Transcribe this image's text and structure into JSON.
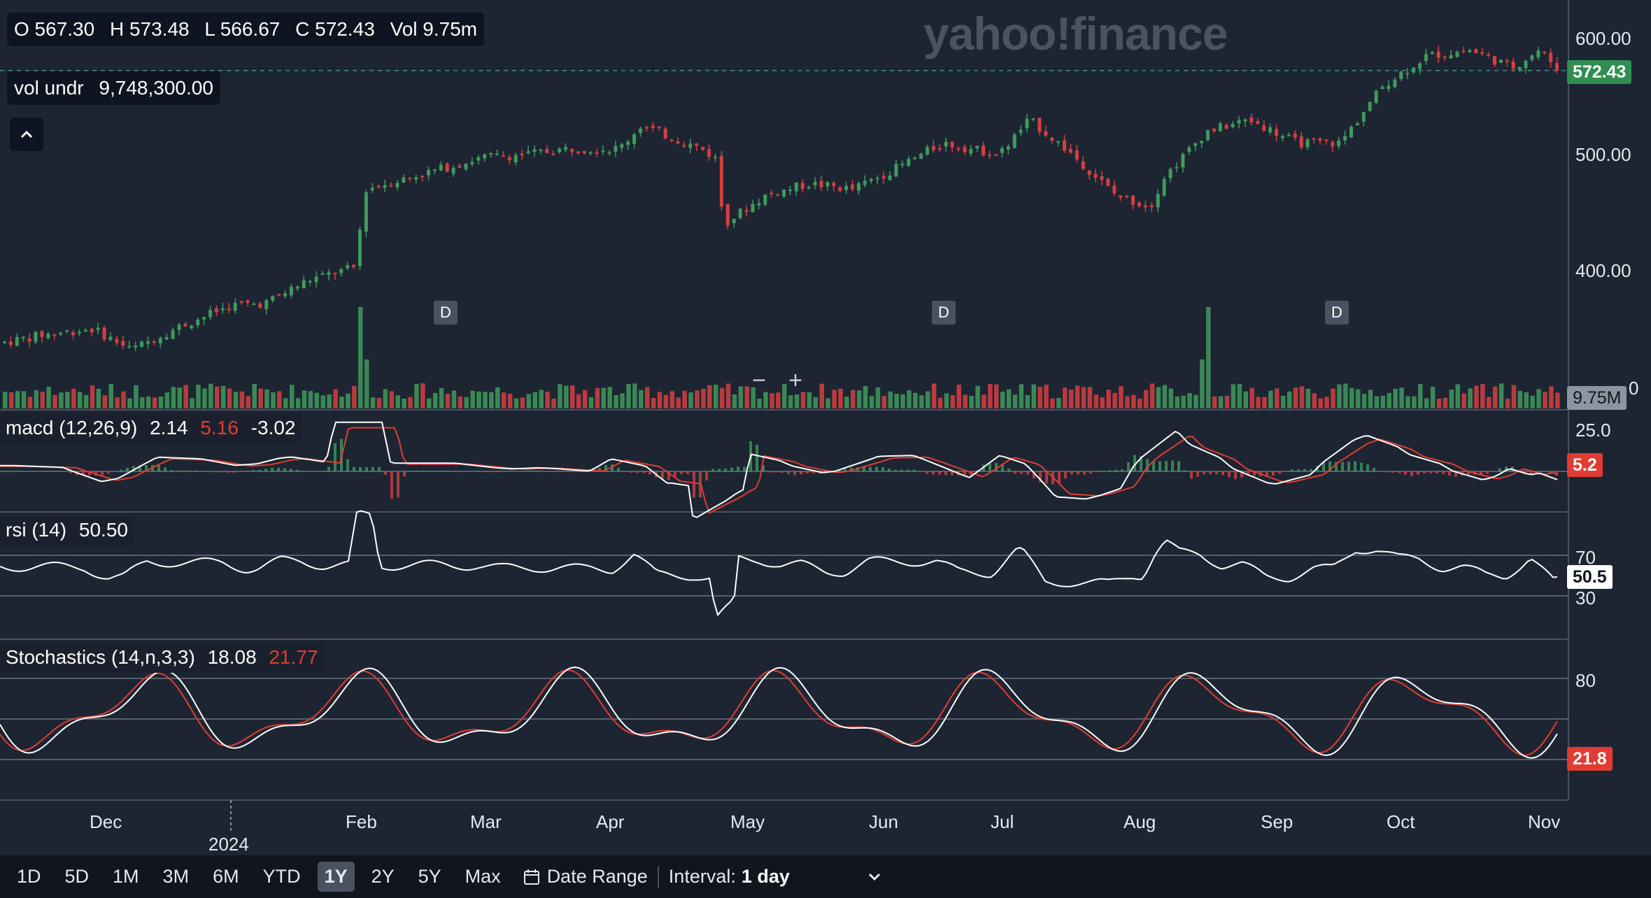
{
  "header": {
    "ohlc": {
      "open": "O 567.30",
      "high": "H 573.48",
      "low": "L 566.67",
      "close": "C 572.43",
      "vol": "Vol 9.75m"
    },
    "vol_undr": {
      "label": "vol undr",
      "value": "9,748,300.00"
    },
    "watermark": "yahoo!finance",
    "collapse_icon": "chevron-up-icon"
  },
  "price_axis": {
    "ticks": [
      "600.00",
      "500.00",
      "400.00"
    ],
    "current_price": "572.43",
    "volume_badge": "9.75M",
    "hidden_tick": "0"
  },
  "dividend_marks": [
    "D",
    "D",
    "D"
  ],
  "zoom": {
    "out": "−",
    "in": "+"
  },
  "macd": {
    "label": "macd (12,26,9)",
    "v1": "2.14",
    "v2": "5.16",
    "v3": "-3.02",
    "tick": "25.0",
    "badge": "5.2"
  },
  "rsi": {
    "label": "rsi (14)",
    "value": "50.50",
    "tick_hi": "70",
    "tick_lo": "30",
    "badge": "50.5"
  },
  "stoch": {
    "label": "Stochastics (14,n,3,3)",
    "k": "18.08",
    "d": "21.77",
    "tick": "80",
    "badge": "21.8"
  },
  "x_axis": {
    "months": [
      "Dec",
      "Feb",
      "Mar",
      "Apr",
      "May",
      "Jun",
      "Jul",
      "Aug",
      "Sep",
      "Oct",
      "Nov"
    ],
    "year": "2024"
  },
  "bottom_bar": {
    "ranges": [
      "1D",
      "5D",
      "1M",
      "3M",
      "6M",
      "YTD",
      "1Y",
      "2Y",
      "5Y",
      "Max"
    ],
    "active_range": "1Y",
    "date_range": "Date Range",
    "interval_label": "Interval:",
    "interval_value": "1 day"
  },
  "colors": {
    "background": "#1d2532",
    "up": "#3f9a5c",
    "down": "#d63f3f",
    "macd_line": "#ffffff",
    "signal_line": "#e03c31",
    "price_badge": "#2f8f4e"
  },
  "chart_data": {
    "type": "candlestick",
    "symbol_price_path": [
      [
        "2023-11-10",
        338
      ],
      [
        "2023-11-20",
        345
      ],
      [
        "2023-12-01",
        350
      ],
      [
        "2023-12-10",
        332
      ],
      [
        "2023-12-20",
        350
      ],
      [
        "2024-01-02",
        370
      ],
      [
        "2024-01-10",
        372
      ],
      [
        "2024-01-20",
        392
      ],
      [
        "2024-01-31",
        403
      ],
      [
        "2024-02-02",
        470
      ],
      [
        "2024-02-15",
        483
      ],
      [
        "2024-03-01",
        498
      ],
      [
        "2024-03-10",
        500
      ],
      [
        "2024-03-20",
        505
      ],
      [
        "2024-04-01",
        505
      ],
      [
        "2024-04-06",
        525
      ],
      [
        "2024-04-20",
        505
      ],
      [
        "2024-04-24",
        495
      ],
      [
        "2024-04-25",
        440
      ],
      [
        "2024-05-05",
        465
      ],
      [
        "2024-05-15",
        475
      ],
      [
        "2024-05-25",
        470
      ],
      [
        "2024-06-05",
        490
      ],
      [
        "2024-06-15",
        510
      ],
      [
        "2024-06-28",
        500
      ],
      [
        "2024-07-05",
        530
      ],
      [
        "2024-07-15",
        500
      ],
      [
        "2024-07-25",
        465
      ],
      [
        "2024-08-02",
        455
      ],
      [
        "2024-08-05",
        480
      ],
      [
        "2024-08-15",
        520
      ],
      [
        "2024-08-25",
        530
      ],
      [
        "2024-09-05",
        510
      ],
      [
        "2024-09-15",
        510
      ],
      [
        "2024-09-25",
        560
      ],
      [
        "2024-10-05",
        585
      ],
      [
        "2024-10-15",
        590
      ],
      [
        "2024-10-25",
        575
      ],
      [
        "2024-10-31",
        590
      ],
      [
        "2024-11-05",
        572.43
      ]
    ],
    "y_ticks": [
      400,
      500,
      600
    ],
    "current": 572.43,
    "ohlc_last": {
      "open": 567.3,
      "high": 573.48,
      "low": 566.67,
      "close": 572.43
    },
    "volume_last": 9748300,
    "macd_last": {
      "macd": 2.14,
      "signal": 5.16,
      "hist": -3.02
    },
    "rsi_last": 50.5,
    "stoch_last": {
      "k": 18.08,
      "d": 21.77
    }
  }
}
